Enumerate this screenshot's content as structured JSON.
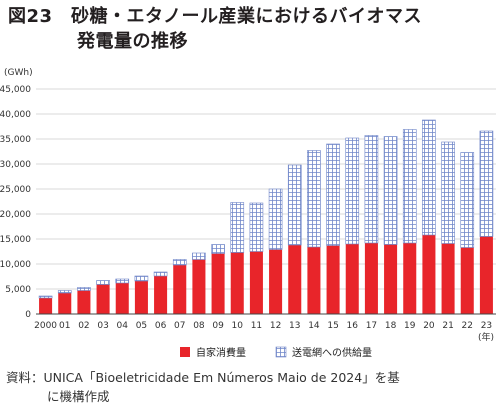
{
  "title": {
    "line1": "図23　砂糖・エタノール産業におけるバイオマス",
    "line2": "発電量の推移"
  },
  "source": {
    "line1": "資料：UNICA「Bioeletricidade Em Números Maio de 2024」を基",
    "line2": "に機構作成"
  },
  "chart_data": {
    "type": "bar",
    "stacked": true,
    "yunit": "(GWh)",
    "xunit": "(年)",
    "ylim": [
      0,
      45000
    ],
    "yticks": [
      0,
      5000,
      10000,
      15000,
      20000,
      25000,
      30000,
      35000,
      40000,
      45000
    ],
    "ytick_labels": [
      "0",
      "5,000",
      "10,000",
      "15,000",
      "20,000",
      "25,000",
      "30,000",
      "35,000",
      "40,000",
      "45,000"
    ],
    "grid": true,
    "legend_position": "bottom",
    "categories": [
      "2000",
      "01",
      "02",
      "03",
      "04",
      "05",
      "06",
      "07",
      "08",
      "09",
      "10",
      "11",
      "12",
      "13",
      "14",
      "15",
      "16",
      "17",
      "18",
      "19",
      "20",
      "21",
      "22",
      "23"
    ],
    "series": [
      {
        "name": "自家消費量",
        "color": "#e8252a",
        "values": [
          3200,
          4200,
          4700,
          5900,
          6200,
          6600,
          7600,
          9800,
          10900,
          12100,
          12300,
          12500,
          12900,
          13800,
          13400,
          13700,
          14000,
          14200,
          13900,
          14200,
          15800,
          14100,
          13300,
          15500
        ]
      },
      {
        "name": "送電網への供給量",
        "color": "#c9d3ee",
        "values": [
          400,
          500,
          600,
          800,
          800,
          1000,
          800,
          1100,
          1300,
          1800,
          10000,
          9700,
          12100,
          16000,
          19300,
          20300,
          21200,
          21500,
          21600,
          22700,
          23000,
          20300,
          19000,
          21100
        ]
      }
    ]
  }
}
